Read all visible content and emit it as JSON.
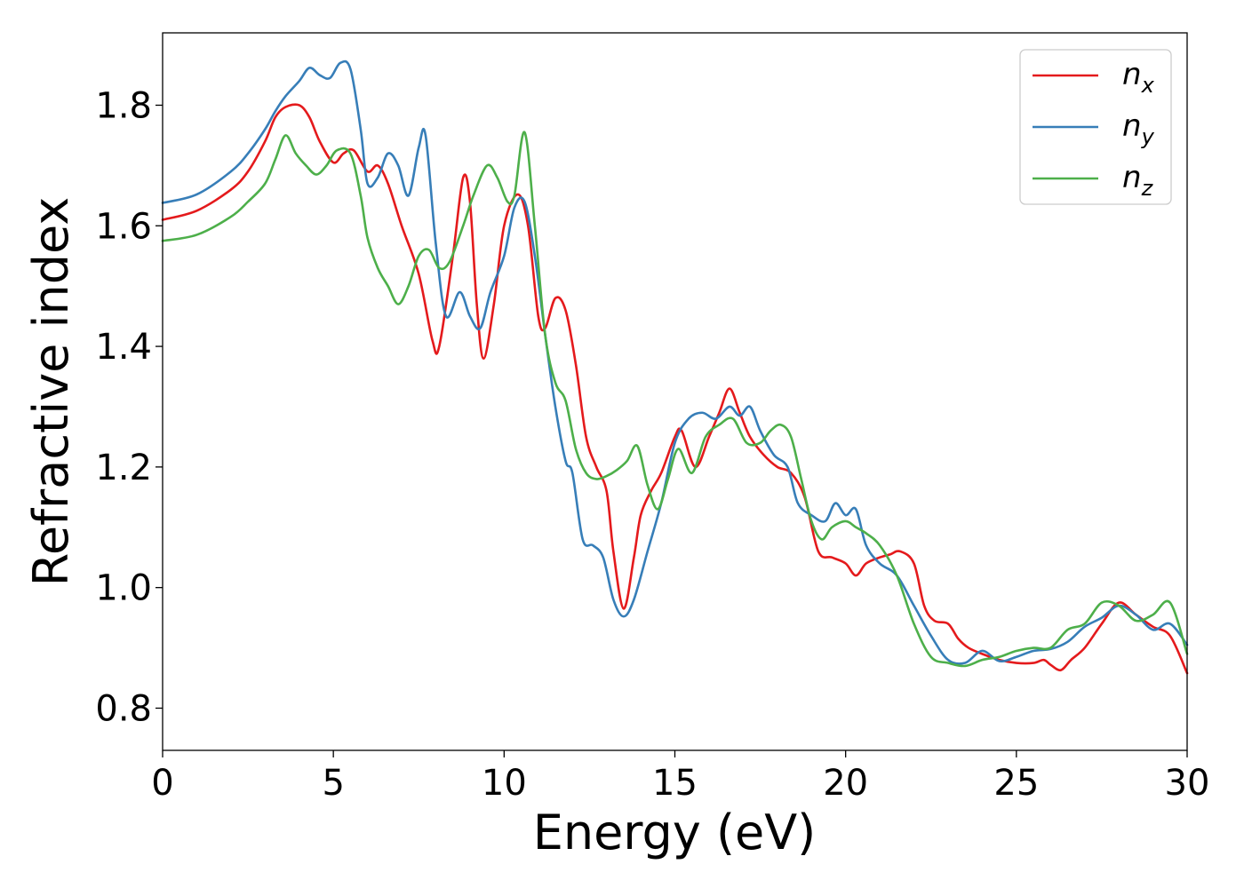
{
  "chart_data": {
    "type": "line",
    "xlabel": "Energy (eV)",
    "ylabel": "Refractive index",
    "xlim": [
      0,
      30
    ],
    "ylim": [
      0.73,
      1.92
    ],
    "xticks": [
      0,
      5,
      10,
      15,
      20,
      25,
      30
    ],
    "yticks": [
      0.8,
      1.0,
      1.2,
      1.4,
      1.6,
      1.8
    ],
    "grid": false,
    "legend_position": "top-right",
    "series": [
      {
        "name": "n",
        "subscript": "x",
        "color": "#e41a1c",
        "x": [
          0,
          1,
          2,
          2.5,
          3,
          3.3,
          3.6,
          4.0,
          4.3,
          4.6,
          5.0,
          5.3,
          5.6,
          6.0,
          6.3,
          6.6,
          7.0,
          7.5,
          7.9,
          8.1,
          8.5,
          8.8,
          9.0,
          9.2,
          9.4,
          9.7,
          10.0,
          10.4,
          10.7,
          11.0,
          11.2,
          11.5,
          11.8,
          12.1,
          12.4,
          12.7,
          13.0,
          13.2,
          13.5,
          13.8,
          14.0,
          14.3,
          14.6,
          15.0,
          15.2,
          15.6,
          16.0,
          16.3,
          16.6,
          16.9,
          17.2,
          17.6,
          18.0,
          18.4,
          18.8,
          19.2,
          19.6,
          20.0,
          20.3,
          20.6,
          21.0,
          21.3,
          21.6,
          22.0,
          22.3,
          22.6,
          23.0,
          23.3,
          23.6,
          24.0,
          24.5,
          25.0,
          25.5,
          25.8,
          26.0,
          26.3,
          26.6,
          27.0,
          27.5,
          28.0,
          28.5,
          29.0,
          29.5,
          30.0
        ],
        "y": [
          1.61,
          1.625,
          1.66,
          1.69,
          1.74,
          1.78,
          1.797,
          1.8,
          1.78,
          1.74,
          1.705,
          1.72,
          1.725,
          1.69,
          1.7,
          1.67,
          1.6,
          1.52,
          1.41,
          1.4,
          1.55,
          1.68,
          1.64,
          1.47,
          1.38,
          1.47,
          1.6,
          1.652,
          1.6,
          1.45,
          1.43,
          1.48,
          1.46,
          1.37,
          1.25,
          1.2,
          1.16,
          1.06,
          0.965,
          1.05,
          1.12,
          1.16,
          1.19,
          1.25,
          1.26,
          1.2,
          1.25,
          1.29,
          1.33,
          1.29,
          1.25,
          1.22,
          1.2,
          1.19,
          1.15,
          1.06,
          1.05,
          1.04,
          1.02,
          1.04,
          1.05,
          1.055,
          1.06,
          1.04,
          0.97,
          0.945,
          0.94,
          0.915,
          0.9,
          0.89,
          0.88,
          0.875,
          0.875,
          0.88,
          0.872,
          0.863,
          0.88,
          0.9,
          0.94,
          0.975,
          0.955,
          0.935,
          0.92,
          0.858
        ]
      },
      {
        "name": "n",
        "subscript": "y",
        "color": "#377eb8",
        "x": [
          0,
          1,
          2,
          2.5,
          3,
          3.3,
          3.6,
          4.0,
          4.3,
          4.6,
          4.9,
          5.2,
          5.5,
          5.8,
          6.0,
          6.3,
          6.6,
          6.9,
          7.2,
          7.5,
          7.7,
          8.0,
          8.3,
          8.7,
          9.0,
          9.3,
          9.6,
          10.0,
          10.3,
          10.6,
          10.9,
          11.2,
          11.5,
          11.8,
          12.0,
          12.3,
          12.6,
          12.9,
          13.2,
          13.5,
          13.8,
          14.2,
          14.6,
          15.0,
          15.4,
          15.8,
          16.2,
          16.6,
          16.9,
          17.2,
          17.5,
          17.9,
          18.3,
          18.6,
          19.0,
          19.4,
          19.7,
          20.0,
          20.3,
          20.6,
          21.0,
          21.5,
          22.0,
          22.5,
          23.0,
          23.5,
          24.0,
          24.5,
          25.0,
          25.5,
          26.0,
          26.5,
          27.0,
          27.5,
          28.0,
          28.5,
          29.0,
          29.5,
          30.0
        ],
        "y": [
          1.638,
          1.652,
          1.69,
          1.72,
          1.76,
          1.79,
          1.815,
          1.84,
          1.862,
          1.85,
          1.845,
          1.87,
          1.86,
          1.76,
          1.67,
          1.68,
          1.72,
          1.7,
          1.65,
          1.73,
          1.75,
          1.57,
          1.45,
          1.49,
          1.45,
          1.43,
          1.49,
          1.55,
          1.63,
          1.64,
          1.55,
          1.42,
          1.3,
          1.21,
          1.19,
          1.08,
          1.07,
          1.05,
          0.98,
          0.952,
          0.98,
          1.06,
          1.14,
          1.24,
          1.28,
          1.29,
          1.28,
          1.3,
          1.285,
          1.3,
          1.26,
          1.22,
          1.2,
          1.14,
          1.12,
          1.11,
          1.14,
          1.12,
          1.13,
          1.07,
          1.04,
          1.02,
          0.97,
          0.92,
          0.88,
          0.875,
          0.895,
          0.878,
          0.885,
          0.895,
          0.898,
          0.91,
          0.935,
          0.95,
          0.97,
          0.955,
          0.93,
          0.94,
          0.905
        ]
      },
      {
        "name": "n",
        "subscript": "z",
        "color": "#4daf4a",
        "x": [
          0,
          1,
          2,
          2.5,
          3,
          3.3,
          3.6,
          3.9,
          4.2,
          4.5,
          4.8,
          5.1,
          5.5,
          5.8,
          6.0,
          6.3,
          6.6,
          6.9,
          7.2,
          7.5,
          7.8,
          8.1,
          8.4,
          8.8,
          9.1,
          9.5,
          9.8,
          10.1,
          10.3,
          10.6,
          10.9,
          11.2,
          11.5,
          11.8,
          12.1,
          12.4,
          12.7,
          13.0,
          13.3,
          13.6,
          13.9,
          14.2,
          14.5,
          14.8,
          15.1,
          15.5,
          15.9,
          16.3,
          16.7,
          17.1,
          17.5,
          17.8,
          18.1,
          18.4,
          18.7,
          19.0,
          19.3,
          19.6,
          20.0,
          20.3,
          20.6,
          21.0,
          21.5,
          22.0,
          22.5,
          23.0,
          23.5,
          24.0,
          24.5,
          25.0,
          25.5,
          26.0,
          26.5,
          27.0,
          27.5,
          28.0,
          28.5,
          29.0,
          29.5,
          30.0
        ],
        "y": [
          1.575,
          1.585,
          1.615,
          1.64,
          1.67,
          1.71,
          1.75,
          1.72,
          1.7,
          1.685,
          1.7,
          1.725,
          1.72,
          1.65,
          1.58,
          1.53,
          1.5,
          1.47,
          1.5,
          1.55,
          1.56,
          1.53,
          1.54,
          1.6,
          1.65,
          1.7,
          1.68,
          1.64,
          1.65,
          1.755,
          1.6,
          1.42,
          1.34,
          1.31,
          1.23,
          1.19,
          1.18,
          1.185,
          1.195,
          1.21,
          1.235,
          1.17,
          1.13,
          1.18,
          1.23,
          1.19,
          1.25,
          1.27,
          1.28,
          1.24,
          1.24,
          1.26,
          1.27,
          1.25,
          1.18,
          1.11,
          1.08,
          1.1,
          1.11,
          1.1,
          1.09,
          1.07,
          1.02,
          0.94,
          0.885,
          0.875,
          0.87,
          0.88,
          0.885,
          0.895,
          0.9,
          0.9,
          0.93,
          0.94,
          0.975,
          0.97,
          0.945,
          0.955,
          0.975,
          0.89
        ]
      }
    ]
  }
}
